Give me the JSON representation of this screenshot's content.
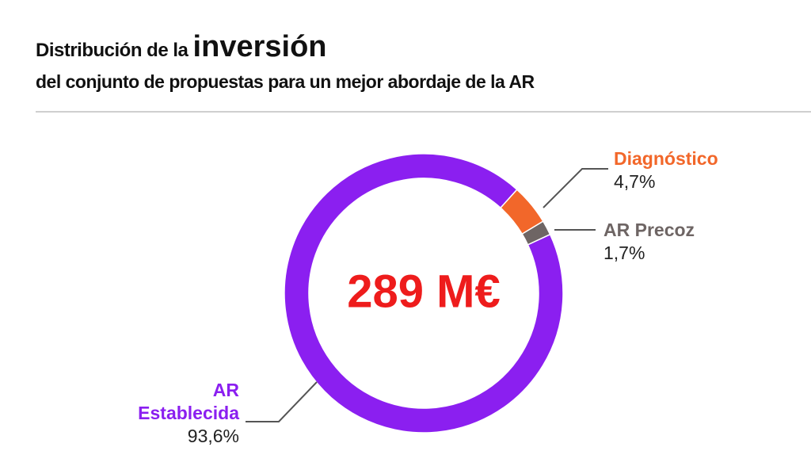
{
  "chart_data": {
    "type": "donut",
    "title": "Distribución de la",
    "title_highlight": "inversión",
    "subtitle": "del conjunto de propuestas para un mejor abordaje de la AR",
    "center_label": "289 M€",
    "categories": [
      "Diagnóstico",
      "AR Precoz",
      "AR Establecida"
    ],
    "values": [
      4.7,
      1.7,
      93.6
    ],
    "value_labels": [
      "4,7%",
      "1,7%",
      "93,6%"
    ],
    "colors": [
      "#f2672a",
      "#6e6564",
      "#8b1ff0"
    ]
  }
}
